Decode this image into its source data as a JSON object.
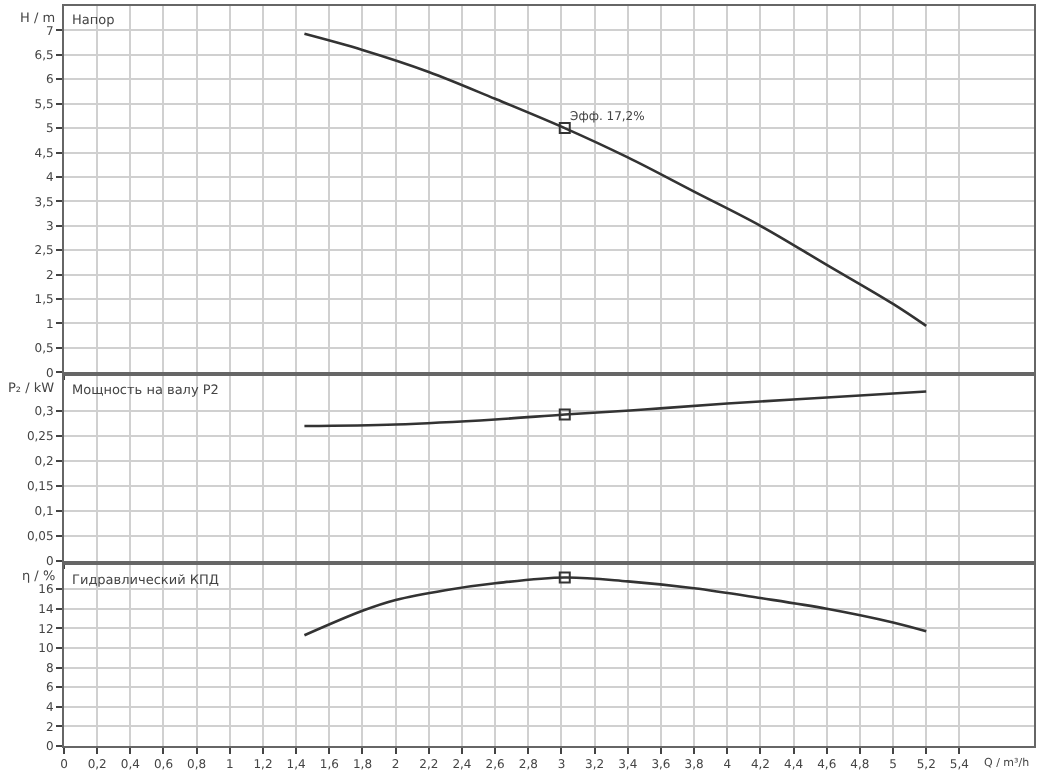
{
  "chart_data": [
    {
      "type": "line",
      "title": "Напор",
      "ylabel": "H / m",
      "tick_labels": "y",
      "grid": true,
      "line_style": "solid",
      "xlim": [
        0,
        5.85
      ],
      "xticks": [
        0,
        0.2,
        0.4,
        0.6,
        0.8,
        1,
        1.2,
        1.4,
        1.6,
        1.8,
        2,
        2.2,
        2.4,
        2.6,
        2.8,
        3,
        3.2,
        3.4,
        3.6,
        3.8,
        4,
        4.2,
        4.4,
        4.6,
        4.8,
        5,
        5.2,
        5.4
      ],
      "ylim": [
        0,
        7.5
      ],
      "yticks": [
        0,
        {
          "value": 0.5,
          "label": "0,5"
        },
        1,
        {
          "value": 1.5,
          "label": "1,5"
        },
        2,
        {
          "value": 2.5,
          "label": "2,5"
        },
        3,
        {
          "value": 3.5,
          "label": "3,5"
        },
        4,
        {
          "value": 4.5,
          "label": "4,5"
        },
        5,
        {
          "value": 5.5,
          "label": "5,5"
        },
        6,
        {
          "value": 6.5,
          "label": "6,5"
        },
        7
      ],
      "annotations": [
        {
          "text": "Эфф. 17,2%",
          "x": 3.02,
          "y": 5.0
        }
      ],
      "series": [
        {
          "color": "#333333",
          "marker": "none",
          "x": [
            1.45,
            1.8,
            2.2,
            2.6,
            3.02,
            3.4,
            3.8,
            4.2,
            4.6,
            5.0,
            5.2
          ],
          "values": [
            6.93,
            6.6,
            6.15,
            5.6,
            5.0,
            4.4,
            3.7,
            3.0,
            2.2,
            1.4,
            0.95
          ]
        },
        {
          "type": "scatter",
          "color": "#333333",
          "marker": "square",
          "x": [
            3.02
          ],
          "values": [
            5.0
          ]
        }
      ]
    },
    {
      "type": "line",
      "title": "Мощность на валу P2",
      "ylabel": "P₂ / kW",
      "tick_labels": "y",
      "grid": true,
      "line_style": "solid",
      "xlim": [
        0,
        5.85
      ],
      "xticks": [
        0,
        0.2,
        0.4,
        0.6,
        0.8,
        1,
        1.2,
        1.4,
        1.6,
        1.8,
        2,
        2.2,
        2.4,
        2.6,
        2.8,
        3,
        3.2,
        3.4,
        3.6,
        3.8,
        4,
        4.2,
        4.4,
        4.6,
        4.8,
        5,
        5.2,
        5.4
      ],
      "ylim": [
        0,
        0.37
      ],
      "yticks": [
        0,
        {
          "value": 0.05,
          "label": "0,05"
        },
        {
          "value": 0.1,
          "label": "0,1"
        },
        {
          "value": 0.15,
          "label": "0,15"
        },
        {
          "value": 0.2,
          "label": "0,2"
        },
        {
          "value": 0.25,
          "label": "0,25"
        },
        {
          "value": 0.3,
          "label": "0,3"
        }
      ],
      "series": [
        {
          "color": "#333333",
          "marker": "none",
          "x": [
            1.45,
            2.0,
            2.6,
            3.02,
            3.5,
            4.0,
            4.6,
            5.2
          ],
          "values": [
            0.27,
            0.273,
            0.283,
            0.293,
            0.303,
            0.315,
            0.327,
            0.339
          ]
        },
        {
          "type": "scatter",
          "color": "#333333",
          "marker": "square",
          "x": [
            3.02
          ],
          "values": [
            0.293
          ]
        }
      ]
    },
    {
      "type": "line",
      "title": "Гидравлический КПД",
      "ylabel": "η / %",
      "xlabel": "Q / m³/h",
      "grid": true,
      "line_style": "solid",
      "xlim": [
        0,
        5.85
      ],
      "xticks": [
        0,
        {
          "value": 0.2,
          "label": "0,2"
        },
        {
          "value": 0.4,
          "label": "0,4"
        },
        {
          "value": 0.6,
          "label": "0,6"
        },
        {
          "value": 0.8,
          "label": "0,8"
        },
        1,
        {
          "value": 1.2,
          "label": "1,2"
        },
        {
          "value": 1.4,
          "label": "1,4"
        },
        {
          "value": 1.6,
          "label": "1,6"
        },
        {
          "value": 1.8,
          "label": "1,8"
        },
        2,
        {
          "value": 2.2,
          "label": "2,2"
        },
        {
          "value": 2.4,
          "label": "2,4"
        },
        {
          "value": 2.6,
          "label": "2,6"
        },
        {
          "value": 2.8,
          "label": "2,8"
        },
        3,
        {
          "value": 3.2,
          "label": "3,2"
        },
        {
          "value": 3.4,
          "label": "3,4"
        },
        {
          "value": 3.6,
          "label": "3,6"
        },
        {
          "value": 3.8,
          "label": "3,8"
        },
        4,
        {
          "value": 4.2,
          "label": "4,2"
        },
        {
          "value": 4.4,
          "label": "4,4"
        },
        {
          "value": 4.6,
          "label": "4,6"
        },
        {
          "value": 4.8,
          "label": "4,8"
        },
        5,
        {
          "value": 5.2,
          "label": "5,2"
        },
        {
          "value": 5.4,
          "label": "5,4"
        }
      ],
      "ylim": [
        0,
        18.5
      ],
      "yticks": [
        0,
        2,
        4,
        6,
        8,
        10,
        12,
        14,
        16
      ],
      "series": [
        {
          "color": "#333333",
          "marker": "none",
          "x": [
            1.45,
            1.8,
            2.0,
            2.3,
            2.6,
            3.02,
            3.4,
            3.8,
            4.2,
            4.6,
            5.0,
            5.2
          ],
          "values": [
            11.3,
            13.8,
            14.9,
            15.9,
            16.6,
            17.2,
            16.8,
            16.1,
            15.1,
            14.0,
            12.6,
            11.7
          ]
        },
        {
          "type": "scatter",
          "color": "#333333",
          "marker": "square",
          "x": [
            3.02
          ],
          "values": [
            17.2
          ]
        }
      ]
    }
  ]
}
